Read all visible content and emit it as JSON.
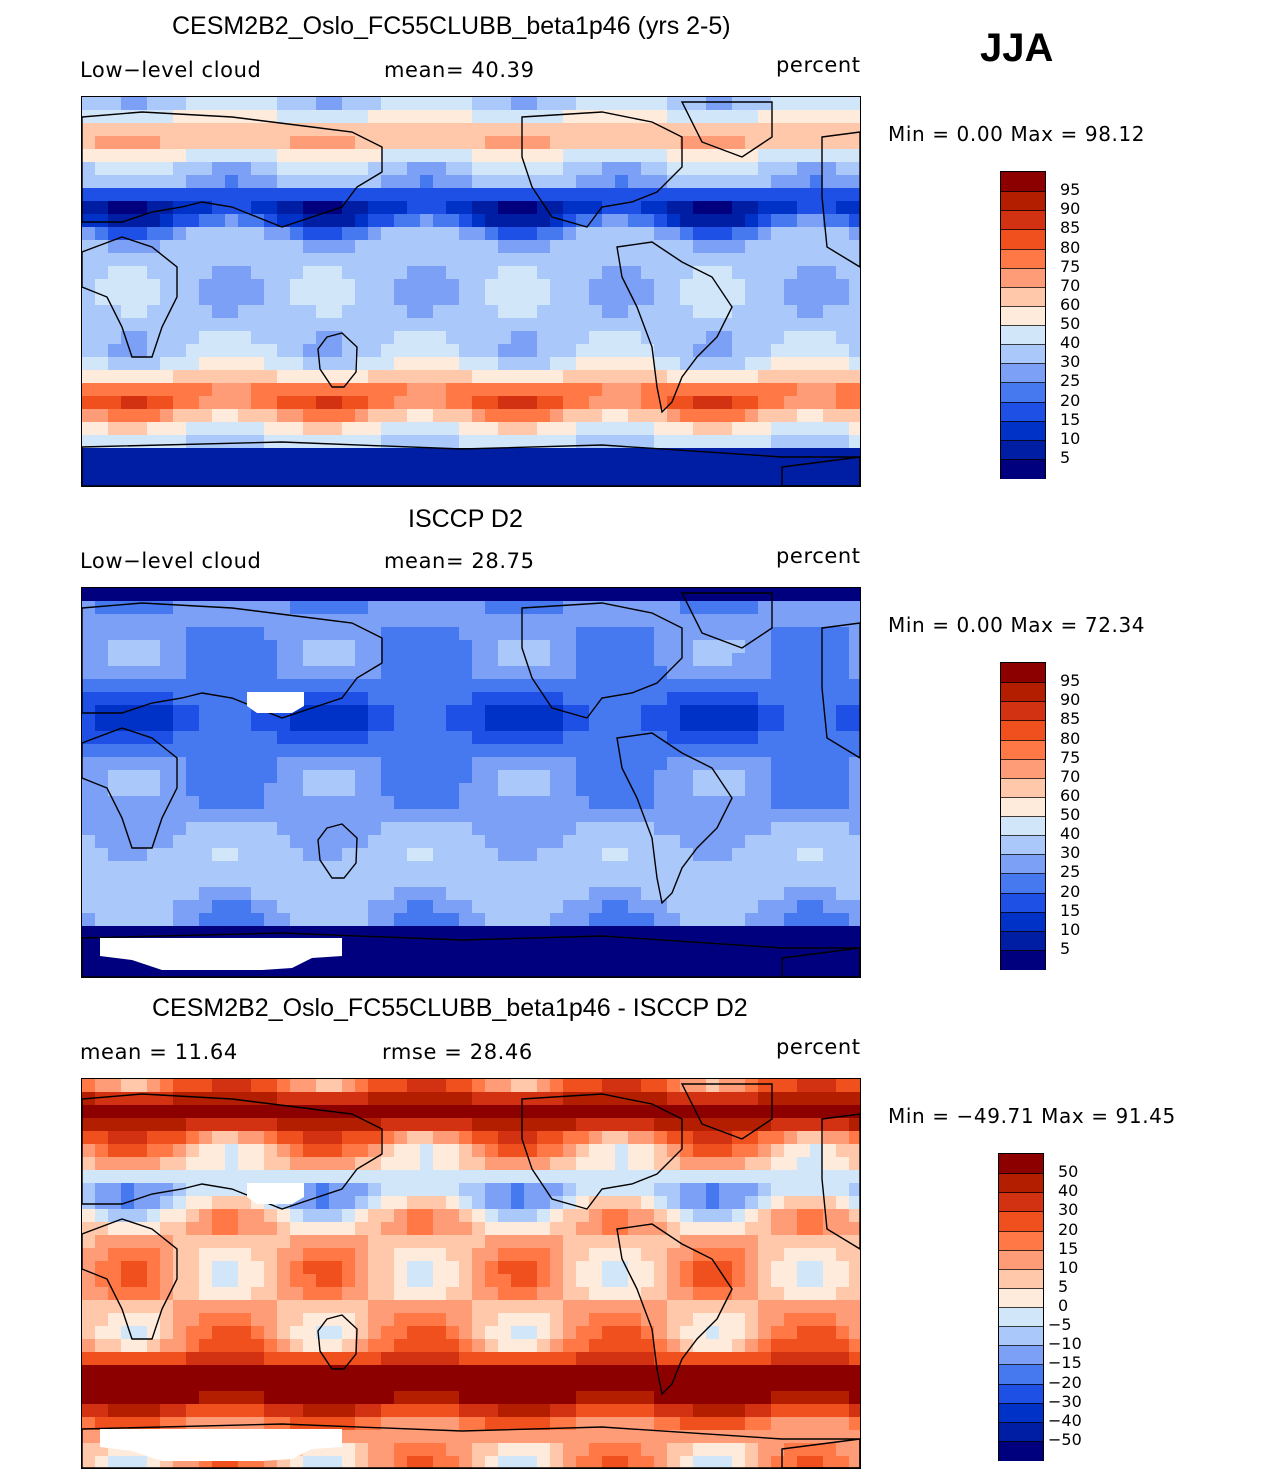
{
  "season": "JJA",
  "palettes": {
    "abs": [
      "#00007e",
      "#001ea4",
      "#0032c8",
      "#1e50e6",
      "#4678f0",
      "#7ca0f5",
      "#aac8fa",
      "#d2e6fa",
      "#ffebdc",
      "#ffc8aa",
      "#ff9c78",
      "#ff7846",
      "#f0501e",
      "#d23212",
      "#b41e00",
      "#8c0000"
    ],
    "diff": [
      "#00007e",
      "#001ea4",
      "#0032c8",
      "#1e50e6",
      "#4678f0",
      "#7ca0f5",
      "#aac8fa",
      "#d2e6fa",
      "#ffebdc",
      "#ffc8aa",
      "#ff9c78",
      "#ff7846",
      "#f0501e",
      "#d23212",
      "#b41e00",
      "#8c0000"
    ]
  },
  "panels": [
    {
      "title": "CESM2B2_Oslo_FC55CLUBB_beta1p46 (yrs 2-5)",
      "left_label": "Low−level cloud",
      "mid_label": "mean=   40.39",
      "units": "percent",
      "minmax": "Min =     0.00  Max =   98.12",
      "cbar_labels": [
        "95",
        "90",
        "85",
        "80",
        "75",
        "70",
        "60",
        "50",
        "40",
        "30",
        "25",
        "20",
        "15",
        "10",
        "5"
      ],
      "field": "model"
    },
    {
      "title": "ISCCP D2",
      "left_label": "Low−level cloud",
      "mid_label": "mean=   28.75",
      "units": "percent",
      "minmax": "Min =     0.00  Max =   72.34",
      "cbar_labels": [
        "95",
        "90",
        "85",
        "80",
        "75",
        "70",
        "60",
        "50",
        "40",
        "30",
        "25",
        "20",
        "15",
        "10",
        "5"
      ],
      "field": "obs"
    },
    {
      "title": "CESM2B2_Oslo_FC55CLUBB_beta1p46 - ISCCP D2",
      "left_label": "mean =   11.64",
      "mid_label": "rmse =   28.46",
      "units": "percent",
      "minmax": "Min = −49.71  Max =   91.45",
      "cbar_labels": [
        "50",
        "40",
        "30",
        "20",
        "15",
        "10",
        "5",
        "0",
        "−5",
        "−10",
        "−15",
        "−20",
        "−30",
        "−40",
        "−50"
      ],
      "field": "diff"
    }
  ]
}
